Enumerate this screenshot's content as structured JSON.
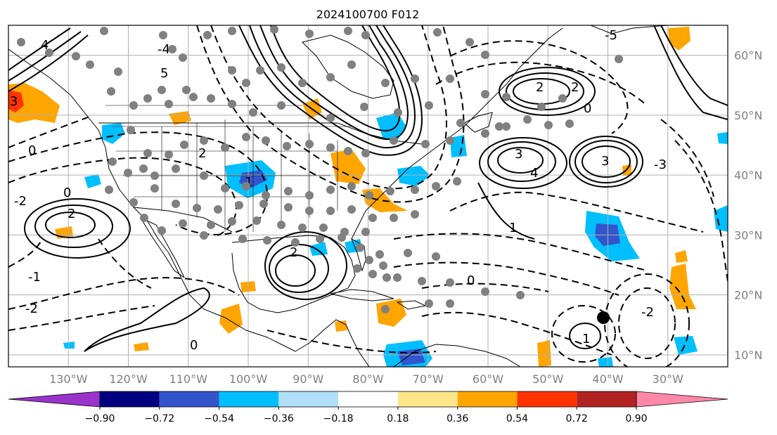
{
  "title": "2024100700 F012",
  "map": {
    "lon_range": [
      -140,
      -20
    ],
    "lat_range": [
      8,
      65
    ],
    "lat_ticks": [
      "60°N",
      "50°N",
      "40°N",
      "30°N",
      "20°N",
      "10°N"
    ],
    "lon_ticks": [
      "130°W",
      "120°W",
      "110°W",
      "100°W",
      "90°W",
      "80°W",
      "70°W",
      "60°W",
      "50°W",
      "40°W",
      "30°W"
    ],
    "colors": {
      "grid": "#b0b0b0",
      "coast": "#000000",
      "contour": "#000000",
      "marker": "#808080",
      "highlight_marker": "#000000"
    },
    "contour_labels": [
      "4",
      "5",
      "3",
      "2",
      "1",
      "0",
      "-1",
      "-2",
      "-3",
      "-4",
      "-5"
    ]
  },
  "colorbar": {
    "ticks": [
      "−0.90",
      "−0.72",
      "−0.54",
      "−0.36",
      "−0.18",
      "0.18",
      "0.36",
      "0.54",
      "0.72",
      "0.90"
    ],
    "colors": [
      "#9933cc",
      "#000080",
      "#3355cc",
      "#00bfff",
      "#b0e0f8",
      "#ffffff",
      "#fde68a",
      "#ffa500",
      "#ff3300",
      "#b22222",
      "#ff88aa"
    ]
  }
}
